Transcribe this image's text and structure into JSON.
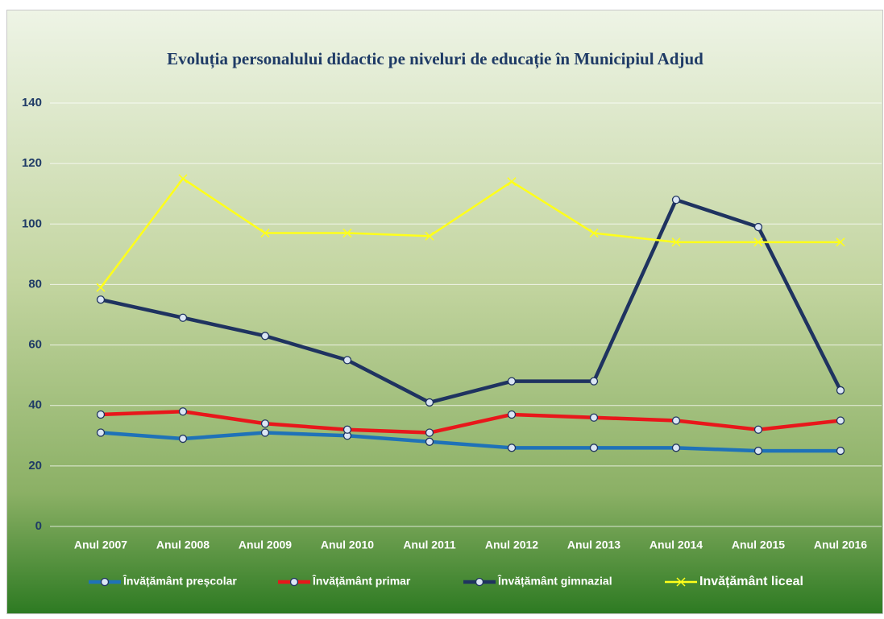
{
  "chart_data": {
    "type": "line",
    "title": "Evoluția personalului didactic pe niveluri de educație în Municipiul Adjud",
    "categories": [
      "Anul 2007",
      "Anul 2008",
      "Anul 2009",
      "Anul 2010",
      "Anul 2011",
      "Anul 2012",
      "Anul 2013",
      "Anul 2014",
      "Anul 2015",
      "Anul 2016"
    ],
    "series": [
      {
        "name": "Învățământ preșcolar",
        "color": "#1f72b8",
        "marker": "circle",
        "values": [
          31,
          29,
          31,
          30,
          28,
          26,
          26,
          26,
          25,
          25
        ]
      },
      {
        "name": "Învățământ primar",
        "color": "#e8171b",
        "marker": "circle",
        "values": [
          37,
          38,
          34,
          32,
          31,
          37,
          36,
          35,
          32,
          35
        ]
      },
      {
        "name": "Învățământ gimnazial",
        "color": "#1f3360",
        "marker": "circle",
        "values": [
          75,
          69,
          63,
          55,
          41,
          48,
          48,
          108,
          99,
          45
        ]
      },
      {
        "name": "Invățământ liceal",
        "color": "#ffff1a",
        "marker": "x",
        "values": [
          79,
          115,
          97,
          97,
          96,
          114,
          97,
          94,
          94,
          94
        ]
      }
    ],
    "ylim": [
      0,
      140
    ],
    "yticks": [
      0,
      20,
      40,
      60,
      80,
      100,
      120,
      140
    ],
    "grid": true,
    "legend": "bottom"
  }
}
